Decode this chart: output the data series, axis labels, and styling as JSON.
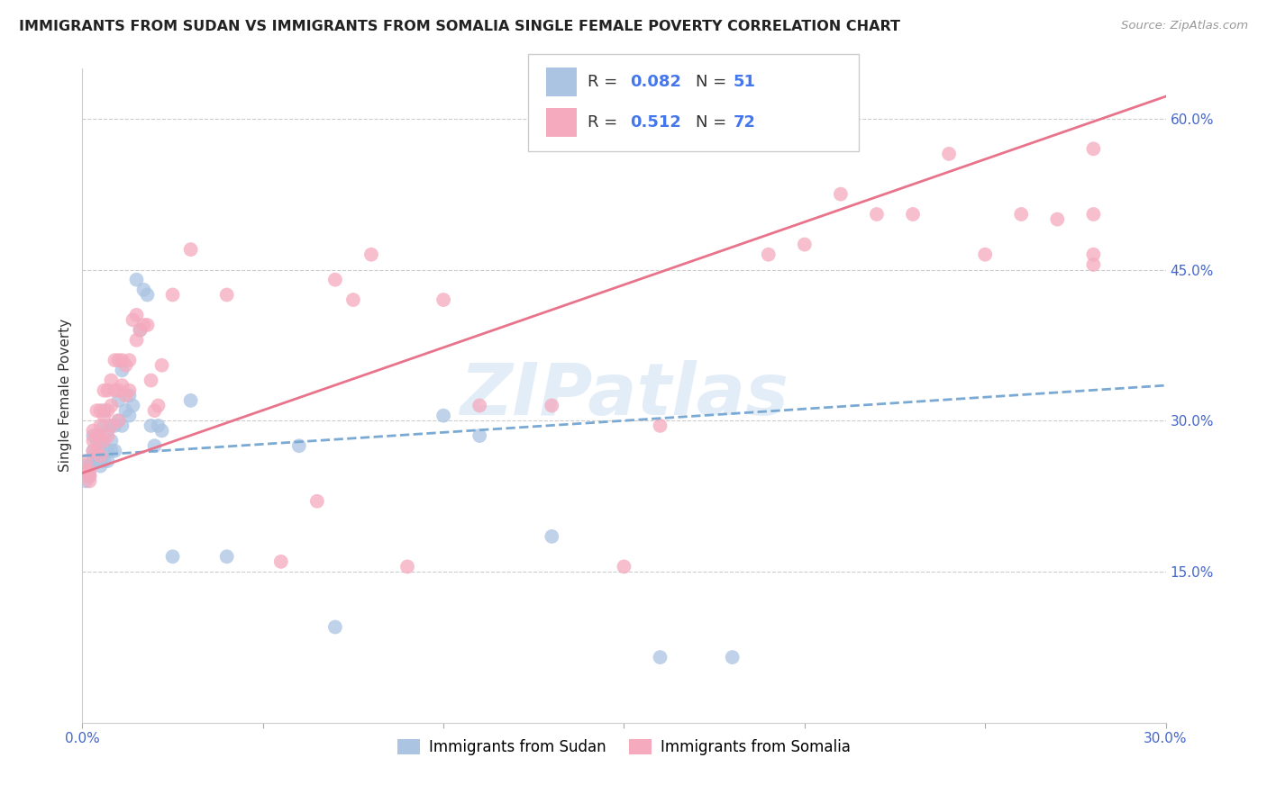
{
  "title": "IMMIGRANTS FROM SUDAN VS IMMIGRANTS FROM SOMALIA SINGLE FEMALE POVERTY CORRELATION CHART",
  "source": "Source: ZipAtlas.com",
  "ylabel": "Single Female Poverty",
  "xlim": [
    0.0,
    0.3
  ],
  "ylim": [
    0.0,
    0.65
  ],
  "x_tick_positions": [
    0.0,
    0.05,
    0.1,
    0.15,
    0.2,
    0.25,
    0.3
  ],
  "x_tick_labels": [
    "0.0%",
    "",
    "",
    "",
    "",
    "",
    "30.0%"
  ],
  "y_ticks_right": [
    0.15,
    0.3,
    0.45,
    0.6
  ],
  "y_tick_labels_right": [
    "15.0%",
    "30.0%",
    "45.0%",
    "60.0%"
  ],
  "sudan_color": "#aac4e2",
  "somalia_color": "#f5aabe",
  "sudan_line_color": "#7aaad4",
  "somalia_line_color": "#e8738a",
  "sudan_R": 0.082,
  "sudan_N": 51,
  "somalia_R": 0.512,
  "somalia_N": 72,
  "watermark": "ZIPatlas",
  "legend_label_sudan": "Immigrants from Sudan",
  "legend_label_somalia": "Immigrants from Somalia",
  "sudan_line_x0": 0.0,
  "sudan_line_y0": 0.265,
  "sudan_line_x1": 0.3,
  "sudan_line_y1": 0.335,
  "somalia_line_x0": 0.0,
  "somalia_line_y0": 0.248,
  "somalia_line_x1": 0.3,
  "somalia_line_y1": 0.622,
  "sudan_x": [
    0.001,
    0.001,
    0.002,
    0.002,
    0.003,
    0.003,
    0.003,
    0.004,
    0.004,
    0.004,
    0.005,
    0.005,
    0.005,
    0.005,
    0.006,
    0.006,
    0.006,
    0.007,
    0.007,
    0.007,
    0.008,
    0.008,
    0.008,
    0.009,
    0.009,
    0.01,
    0.01,
    0.011,
    0.011,
    0.012,
    0.013,
    0.013,
    0.014,
    0.015,
    0.016,
    0.017,
    0.018,
    0.019,
    0.02,
    0.021,
    0.022,
    0.025,
    0.03,
    0.04,
    0.06,
    0.07,
    0.1,
    0.11,
    0.13,
    0.16,
    0.18
  ],
  "sudan_y": [
    0.255,
    0.24,
    0.245,
    0.255,
    0.285,
    0.27,
    0.26,
    0.28,
    0.265,
    0.26,
    0.28,
    0.275,
    0.26,
    0.255,
    0.31,
    0.295,
    0.26,
    0.29,
    0.27,
    0.26,
    0.295,
    0.28,
    0.27,
    0.295,
    0.27,
    0.32,
    0.3,
    0.35,
    0.295,
    0.31,
    0.325,
    0.305,
    0.315,
    0.44,
    0.39,
    0.43,
    0.425,
    0.295,
    0.275,
    0.295,
    0.29,
    0.165,
    0.32,
    0.165,
    0.275,
    0.095,
    0.305,
    0.285,
    0.185,
    0.065,
    0.065
  ],
  "somalia_x": [
    0.001,
    0.001,
    0.002,
    0.002,
    0.002,
    0.003,
    0.003,
    0.003,
    0.004,
    0.004,
    0.004,
    0.005,
    0.005,
    0.005,
    0.005,
    0.006,
    0.006,
    0.006,
    0.007,
    0.007,
    0.007,
    0.008,
    0.008,
    0.008,
    0.009,
    0.009,
    0.01,
    0.01,
    0.01,
    0.011,
    0.011,
    0.012,
    0.012,
    0.013,
    0.013,
    0.014,
    0.015,
    0.015,
    0.016,
    0.017,
    0.018,
    0.019,
    0.02,
    0.021,
    0.022,
    0.025,
    0.03,
    0.04,
    0.055,
    0.065,
    0.07,
    0.075,
    0.08,
    0.09,
    0.1,
    0.11,
    0.13,
    0.15,
    0.16,
    0.19,
    0.2,
    0.21,
    0.22,
    0.23,
    0.24,
    0.25,
    0.26,
    0.27,
    0.28,
    0.28,
    0.28,
    0.28
  ],
  "somalia_y": [
    0.26,
    0.25,
    0.25,
    0.245,
    0.24,
    0.29,
    0.28,
    0.27,
    0.31,
    0.285,
    0.27,
    0.31,
    0.295,
    0.285,
    0.265,
    0.33,
    0.305,
    0.28,
    0.33,
    0.31,
    0.285,
    0.34,
    0.315,
    0.295,
    0.36,
    0.33,
    0.36,
    0.33,
    0.3,
    0.36,
    0.335,
    0.355,
    0.325,
    0.36,
    0.33,
    0.4,
    0.405,
    0.38,
    0.39,
    0.395,
    0.395,
    0.34,
    0.31,
    0.315,
    0.355,
    0.425,
    0.47,
    0.425,
    0.16,
    0.22,
    0.44,
    0.42,
    0.465,
    0.155,
    0.42,
    0.315,
    0.315,
    0.155,
    0.295,
    0.465,
    0.475,
    0.525,
    0.505,
    0.505,
    0.565,
    0.465,
    0.505,
    0.5,
    0.505,
    0.57,
    0.465,
    0.455
  ]
}
